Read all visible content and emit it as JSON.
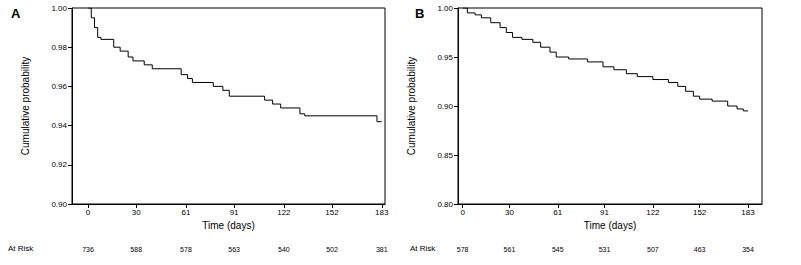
{
  "chart_data": [
    {
      "type": "line",
      "title": "A",
      "line_style": "step",
      "color": "#000000",
      "grid": false,
      "x_label": "Time (days)",
      "y_label": "Cumulative probability",
      "x": [
        0,
        2,
        4,
        6,
        8,
        16,
        20,
        25,
        28,
        35,
        40,
        58,
        62,
        65,
        78,
        84,
        88,
        110,
        115,
        120,
        132,
        135,
        180,
        183
      ],
      "values": [
        1.0,
        0.995,
        0.99,
        0.985,
        0.984,
        0.98,
        0.978,
        0.975,
        0.973,
        0.971,
        0.969,
        0.966,
        0.964,
        0.962,
        0.96,
        0.958,
        0.955,
        0.953,
        0.951,
        0.949,
        0.946,
        0.945,
        0.942,
        0.942
      ],
      "xlim": [
        -10,
        185
      ],
      "xticks": [
        0,
        30,
        61,
        91,
        122,
        152,
        183
      ],
      "ylim": [
        0.9,
        1.0
      ],
      "yticks": [
        {
          "value": 0.9,
          "label": "0.90"
        },
        {
          "value": 0.92,
          "label": "0.92"
        },
        {
          "value": 0.94,
          "label": "0.94"
        },
        {
          "value": 0.96,
          "label": "0.96"
        },
        {
          "value": 0.98,
          "label": "0.98"
        },
        {
          "value": 1.0,
          "label": "1.00"
        }
      ],
      "at_risk": {
        "label": "At Risk",
        "values": [
          736,
          588,
          578,
          563,
          540,
          502,
          381
        ]
      }
    },
    {
      "type": "line",
      "title": "B",
      "line_style": "step",
      "color": "#000000",
      "grid": false,
      "x_label": "Time (days)",
      "y_label": "Cumulative probability",
      "x": [
        0,
        3,
        8,
        12,
        18,
        24,
        28,
        32,
        38,
        45,
        50,
        56,
        60,
        68,
        80,
        90,
        97,
        105,
        112,
        122,
        132,
        138,
        143,
        148,
        152,
        160,
        170,
        176,
        180,
        183
      ],
      "values": [
        1.0,
        0.995,
        0.993,
        0.99,
        0.985,
        0.98,
        0.975,
        0.97,
        0.968,
        0.965,
        0.96,
        0.955,
        0.95,
        0.948,
        0.945,
        0.94,
        0.937,
        0.933,
        0.93,
        0.927,
        0.924,
        0.92,
        0.915,
        0.91,
        0.907,
        0.905,
        0.9,
        0.897,
        0.895,
        0.895
      ],
      "xlim": [
        -3,
        192
      ],
      "xticks": [
        0,
        30,
        61,
        91,
        122,
        152,
        183
      ],
      "ylim": [
        0.8,
        1.0
      ],
      "yticks": [
        {
          "value": 0.8,
          "label": "0.80"
        },
        {
          "value": 0.85,
          "label": "0.85"
        },
        {
          "value": 0.9,
          "label": "0.90"
        },
        {
          "value": 0.95,
          "label": "0.95"
        },
        {
          "value": 1.0,
          "label": "1.00"
        }
      ],
      "at_risk": {
        "label": "At Risk",
        "values": [
          578,
          561,
          545,
          531,
          507,
          463,
          354
        ]
      }
    }
  ]
}
